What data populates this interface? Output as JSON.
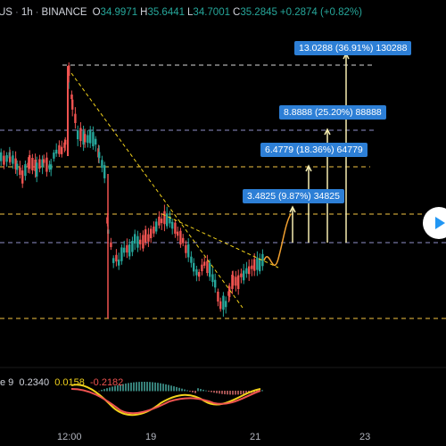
{
  "header": {
    "symbol": "US",
    "interval": "1h",
    "exchange": "BINANCE",
    "open_label": "O",
    "open": "34.9971",
    "high_label": "H",
    "high": "35.6441",
    "low_label": "L",
    "low": "34.7001",
    "close_label": "C",
    "close": "35.2845",
    "change": "+0.2874 (+0.82%)"
  },
  "targets": [
    {
      "label": "3.4825 (9.87%) 34825"
    },
    {
      "label": "6.4779 (18.36%) 64779"
    },
    {
      "label": "8.8888 (25.20%) 88888"
    },
    {
      "label": "13.0288 (36.91%) 130288"
    }
  ],
  "macd": {
    "name": "e 9",
    "v1": "0.2340",
    "v2": "0.0158",
    "v3": "-0.2182"
  },
  "x_axis": {
    "labels": [
      "12:00",
      "19",
      "21",
      "23"
    ]
  },
  "colors": {
    "background": "#000000",
    "up": "#26a69a",
    "down": "#ef5350",
    "target_box": "#2d7fd6",
    "trend": "#f2d21b",
    "levels": "#f5c542",
    "macd_line": "#f2d21b",
    "signal_line": "#ef5350"
  },
  "icons": {
    "play": "play-icon"
  }
}
